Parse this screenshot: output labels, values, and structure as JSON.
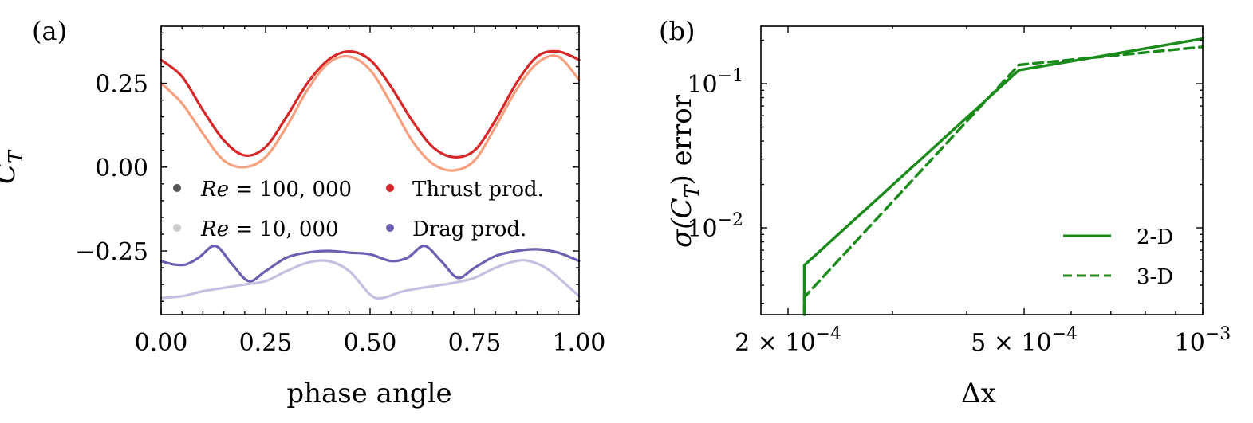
{
  "chart_data": [
    {
      "type": "line",
      "panel_label": "(a)",
      "xlabel": "phase angle",
      "ylabel": "C",
      "ylabel_sub": "T",
      "xlim": [
        0,
        1
      ],
      "ylim": [
        -0.44,
        0.42
      ],
      "xticks": [
        0,
        0.25,
        0.5,
        0.75,
        1.0
      ],
      "xtick_labels": [
        "0.00",
        "0.25",
        "0.50",
        "0.75",
        "1.00"
      ],
      "yticks": [
        -0.25,
        0,
        0.25
      ],
      "ytick_labels": [
        "−0.25",
        "0.00",
        "0.25"
      ],
      "grid": false,
      "legend_position": "center",
      "legend": [
        {
          "text": "Re = 100, 000",
          "color": "#555555"
        },
        {
          "text": "Re = 10, 000",
          "color": "#cccccc"
        },
        {
          "text": "Thrust prod.",
          "color": "#d62728"
        },
        {
          "text": "Drag prod.",
          "color": "#6a5fb0"
        }
      ],
      "legend_parts": {
        "re_symbol": "Re",
        "re_high_value": " = 100, 000",
        "re_low_value": " = 10, 000"
      },
      "series": [
        {
          "name": "Thrust prod., Re = 100, 000",
          "color": "#d62728",
          "x": [
            0,
            0.05,
            0.1,
            0.15,
            0.2,
            0.25,
            0.3,
            0.35,
            0.4,
            0.45,
            0.5,
            0.55,
            0.6,
            0.65,
            0.7,
            0.75,
            0.8,
            0.85,
            0.9,
            0.95,
            1.0
          ],
          "y": [
            0.32,
            0.27,
            0.17,
            0.08,
            0.035,
            0.06,
            0.15,
            0.25,
            0.32,
            0.345,
            0.32,
            0.24,
            0.14,
            0.06,
            0.03,
            0.05,
            0.14,
            0.25,
            0.33,
            0.345,
            0.32
          ]
        },
        {
          "name": "Thrust prod., Re = 10, 000",
          "color": "#f6a080",
          "x": [
            0,
            0.05,
            0.1,
            0.15,
            0.2,
            0.25,
            0.3,
            0.35,
            0.4,
            0.45,
            0.5,
            0.55,
            0.6,
            0.65,
            0.7,
            0.75,
            0.8,
            0.85,
            0.9,
            0.95,
            1.0
          ],
          "y": [
            0.25,
            0.19,
            0.1,
            0.02,
            0.0,
            0.03,
            0.12,
            0.23,
            0.31,
            0.33,
            0.29,
            0.19,
            0.08,
            0.01,
            -0.01,
            0.02,
            0.12,
            0.23,
            0.31,
            0.33,
            0.26
          ]
        },
        {
          "name": "Drag prod., Re = 100, 000",
          "color": "#6a5fb0",
          "x": [
            0,
            0.03,
            0.06,
            0.09,
            0.13,
            0.17,
            0.21,
            0.25,
            0.3,
            0.35,
            0.4,
            0.45,
            0.5,
            0.55,
            0.59,
            0.63,
            0.67,
            0.71,
            0.75,
            0.8,
            0.85,
            0.9,
            0.95,
            1.0
          ],
          "y": [
            -0.28,
            -0.29,
            -0.29,
            -0.27,
            -0.235,
            -0.29,
            -0.34,
            -0.31,
            -0.27,
            -0.255,
            -0.25,
            -0.255,
            -0.26,
            -0.28,
            -0.27,
            -0.235,
            -0.28,
            -0.33,
            -0.3,
            -0.265,
            -0.25,
            -0.245,
            -0.255,
            -0.28
          ]
        },
        {
          "name": "Drag prod., Re = 10, 000",
          "color": "#c4c1e0",
          "x": [
            0,
            0.05,
            0.1,
            0.15,
            0.2,
            0.25,
            0.3,
            0.35,
            0.4,
            0.45,
            0.5,
            0.53,
            0.58,
            0.65,
            0.7,
            0.75,
            0.8,
            0.85,
            0.88,
            0.92,
            0.96,
            1.0
          ],
          "y": [
            -0.39,
            -0.385,
            -0.37,
            -0.36,
            -0.35,
            -0.34,
            -0.31,
            -0.285,
            -0.28,
            -0.31,
            -0.38,
            -0.39,
            -0.37,
            -0.355,
            -0.345,
            -0.33,
            -0.3,
            -0.28,
            -0.28,
            -0.3,
            -0.34,
            -0.385
          ]
        }
      ]
    },
    {
      "type": "line",
      "panel_label": "(b)",
      "xlabel": "Δx",
      "ylabel_pre": "σ(C",
      "ylabel_sub": "T",
      "ylabel_post": ") error",
      "xscale": "log",
      "yscale": "log",
      "xlim": [
        0.00018,
        0.001
      ],
      "ylim": [
        0.0025,
        0.25
      ],
      "xticks": [
        0.0002,
        0.0005,
        0.001
      ],
      "xtick_labels": [
        {
          "base": "2 × 10",
          "exp": "−4"
        },
        {
          "base": "5 × 10",
          "exp": "−4"
        },
        {
          "base": "10",
          "exp": "−3"
        }
      ],
      "yticks": [
        0.01,
        0.1
      ],
      "ytick_labels": [
        {
          "base": "10",
          "exp": "−2"
        },
        {
          "base": "10",
          "exp": "−1"
        }
      ],
      "grid": false,
      "legend_position": "lower-right",
      "legend": [
        {
          "text": "2-D",
          "color": "#1a8a1a",
          "style": "solid"
        },
        {
          "text": "3-D",
          "color": "#1a8a1a",
          "style": "dashed"
        }
      ],
      "series": [
        {
          "name": "2-D",
          "color": "#1a8a1a",
          "style": "solid",
          "x": [
            0.000213,
            0.000213,
            0.00049,
            0.001
          ],
          "y": [
            0.0025,
            0.0055,
            0.124,
            0.205
          ]
        },
        {
          "name": "3-D",
          "color": "#1a8a1a",
          "style": "dashed",
          "x": [
            0.000213,
            0.000213,
            0.00049,
            0.001
          ],
          "y": [
            0.0025,
            0.0033,
            0.135,
            0.18
          ]
        }
      ]
    }
  ]
}
